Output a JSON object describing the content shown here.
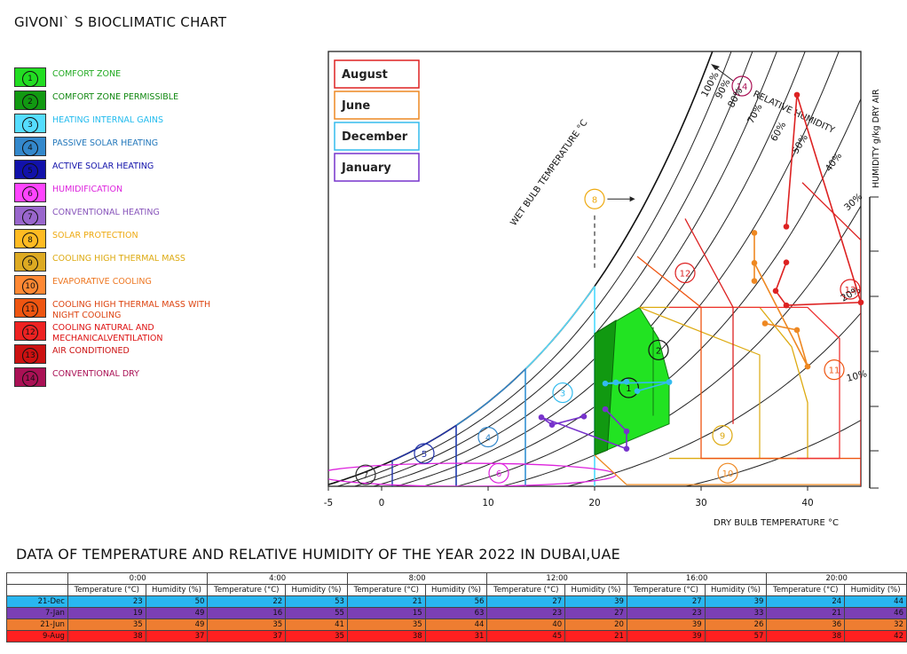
{
  "page_title": "GIVONI` S BIOCLIMATIC CHART",
  "legend": [
    {
      "num": "1",
      "label": "COMFORT ZONE",
      "box": "#22dd22",
      "text": "#22aa22"
    },
    {
      "num": "2",
      "label": "COMFORT ZONE PERMISSIBLE",
      "box": "#119911",
      "text": "#118811"
    },
    {
      "num": "3",
      "label": "HEATING INTERNAL GAINS",
      "box": "#55ddff",
      "text": "#22bbee"
    },
    {
      "num": "4",
      "label": "PASSIVE SOLAR HEATING",
      "box": "#3388cc",
      "text": "#2277bb"
    },
    {
      "num": "5",
      "label": "ACTIVE SOLAR HEATING",
      "box": "#1111aa",
      "text": "#1111aa"
    },
    {
      "num": "6",
      "label": "HUMIDIFICATION",
      "box": "#ff44ff",
      "text": "#dd22dd"
    },
    {
      "num": "7",
      "label": "CONVENTIONAL HEATING",
      "box": "#9966cc",
      "text": "#8855bb"
    },
    {
      "num": "8",
      "label": "SOLAR PROTECTION",
      "box": "#ffbb22",
      "text": "#eeaa11"
    },
    {
      "num": "9",
      "label": "COOLING HIGH THERMAL MASS",
      "box": "#ddaa22",
      "text": "#ddaa11"
    },
    {
      "num": "10",
      "label": "EVAPORATIVE COOLING",
      "box": "#ff8833",
      "text": "#ee7722"
    },
    {
      "num": "11",
      "label": "COOLING HIGH THERMAL MASS WITH NIGHT COOLING",
      "box": "#ee5511",
      "text": "#dd4411"
    },
    {
      "num": "12",
      "label": "COOLING NATURAL AND MECHANICALVENTILATION",
      "box": "#ee2222",
      "text": "#dd1111"
    },
    {
      "num": "13",
      "label": "AIR CONDITIONED",
      "box": "#cc1111",
      "text": "#cc1111"
    },
    {
      "num": "14",
      "label": "CONVENTIONAL DRY",
      "box": "#aa1155",
      "text": "#aa1155"
    }
  ],
  "chart_labels": {
    "series_legend": [
      {
        "name": "August",
        "color": "#dd2222"
      },
      {
        "name": "June",
        "color": "#ee8822"
      },
      {
        "name": "December",
        "color": "#33bbee"
      },
      {
        "name": "January",
        "color": "#7733cc"
      }
    ],
    "xlabel": "DRY BULB TEMPERATURE °C",
    "ylabel": "HUMIDITY g/kg DRY AIR",
    "wet_bulb": "WET BULB TEMPERATURE °C",
    "rh_label": "RELATIVE HUMIDITY",
    "rh_ticks": [
      "100%",
      "90%",
      "80%",
      "70%",
      "60%",
      "50%",
      "40%",
      "30%",
      "20%",
      "10%"
    ],
    "x_ticks": [
      "-5",
      "0",
      "10",
      "20",
      "30",
      "40"
    ]
  },
  "chart_data": {
    "type": "scatter",
    "x_axis": "Dry bulb temperature (°C)",
    "xlim": [
      -5,
      45
    ],
    "series": [
      {
        "name": "December",
        "x": [
          23,
          22,
          21,
          27,
          27,
          24
        ],
        "y": [
          50,
          53,
          56,
          39,
          39,
          44
        ]
      },
      {
        "name": "January",
        "x": [
          19,
          16,
          15,
          23,
          23,
          21
        ],
        "y": [
          49,
          55,
          63,
          27,
          33,
          46
        ]
      },
      {
        "name": "June",
        "x": [
          35,
          35,
          35,
          40,
          39,
          36
        ],
        "y": [
          49,
          41,
          44,
          20,
          26,
          32
        ]
      },
      {
        "name": "August",
        "x": [
          38,
          37,
          38,
          45,
          39,
          38
        ],
        "y": [
          37,
          35,
          31,
          21,
          57,
          42
        ]
      }
    ]
  },
  "table": {
    "title": "DATA OF TEMPERATURE AND RELATIVE HUMIDITY OF THE YEAR 2022 IN DUBAI,UAE",
    "times": [
      "0:00",
      "4:00",
      "8:00",
      "12:00",
      "16:00",
      "20:00"
    ],
    "col_temp": "Temperature (°C)",
    "col_hum": "Humidity (%)",
    "rows": [
      {
        "label": "21-Dec",
        "color": "#29b6f0",
        "values": [
          "23",
          "50",
          "22",
          "53",
          "21",
          "56",
          "27",
          "39",
          "27",
          "39",
          "24",
          "44"
        ]
      },
      {
        "label": "7-Jan",
        "color": "#7b3fb5",
        "values": [
          "19",
          "49",
          "16",
          "55",
          "15",
          "63",
          "23",
          "27",
          "23",
          "33",
          "21",
          "46"
        ]
      },
      {
        "label": "21-Jun",
        "color": "#ee7d31",
        "values": [
          "35",
          "49",
          "35",
          "41",
          "35",
          "44",
          "40",
          "20",
          "39",
          "26",
          "36",
          "32"
        ]
      },
      {
        "label": "9-Aug",
        "color": "#ff2020",
        "values": [
          "38",
          "37",
          "37",
          "35",
          "38",
          "31",
          "45",
          "21",
          "39",
          "57",
          "38",
          "42"
        ]
      }
    ]
  }
}
